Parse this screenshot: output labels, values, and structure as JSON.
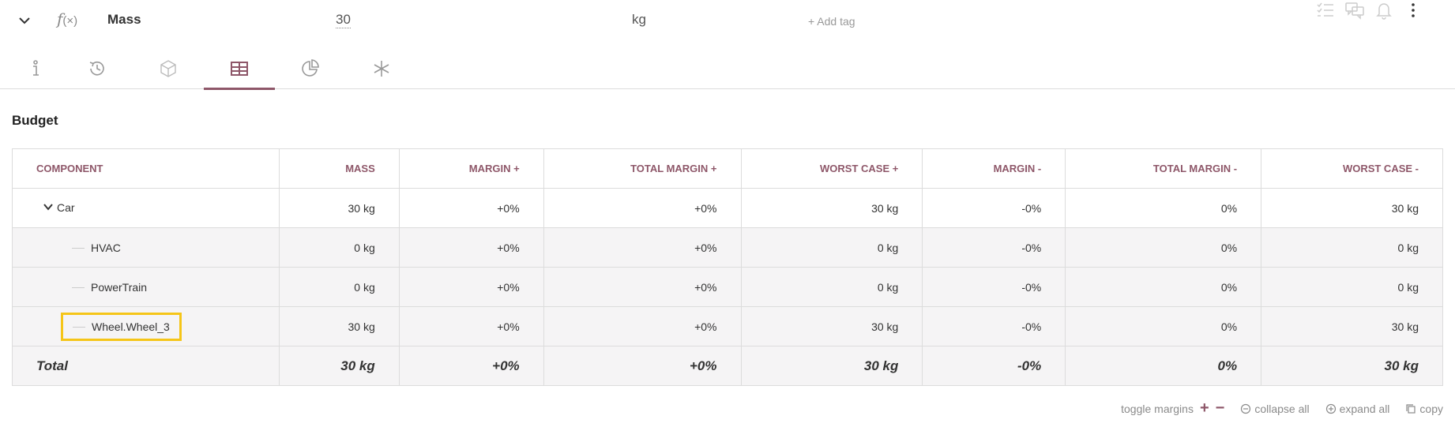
{
  "header": {
    "fx_symbol": "f",
    "fx_args": "(×)",
    "name": "Mass",
    "value": "30",
    "unit": "kg",
    "add_tag": "+ Add tag"
  },
  "section_title": "Budget",
  "table": {
    "headers": [
      "COMPONENT",
      "MASS",
      "MARGIN +",
      "TOTAL MARGIN +",
      "WORST CASE +",
      "MARGIN -",
      "TOTAL MARGIN -",
      "WORST CASE -"
    ],
    "rows": [
      {
        "name": "Car",
        "cells": [
          "30 kg",
          "+0%",
          "+0%",
          "30 kg",
          "-0%",
          "0%",
          "30 kg"
        ]
      },
      {
        "name": "HVAC",
        "cells": [
          "0 kg",
          "+0%",
          "+0%",
          "0 kg",
          "-0%",
          "0%",
          "0 kg"
        ]
      },
      {
        "name": "PowerTrain",
        "cells": [
          "0 kg",
          "+0%",
          "+0%",
          "0 kg",
          "-0%",
          "0%",
          "0 kg"
        ]
      },
      {
        "name": "Wheel.Wheel_3",
        "cells": [
          "30 kg",
          "+0%",
          "+0%",
          "30 kg",
          "-0%",
          "0%",
          "30 kg"
        ]
      }
    ],
    "total": {
      "name": "Total",
      "cells": [
        "30 kg",
        "+0%",
        "+0%",
        "30 kg",
        "-0%",
        "0%",
        "30 kg"
      ]
    }
  },
  "footer": {
    "toggle_margins": "toggle margins",
    "plus": "+",
    "minus": "−",
    "collapse_all": "collapse all",
    "expand_all": "expand all",
    "copy": "copy"
  },
  "colors": {
    "accent": "#8e5769",
    "highlight": "#f5c518"
  }
}
